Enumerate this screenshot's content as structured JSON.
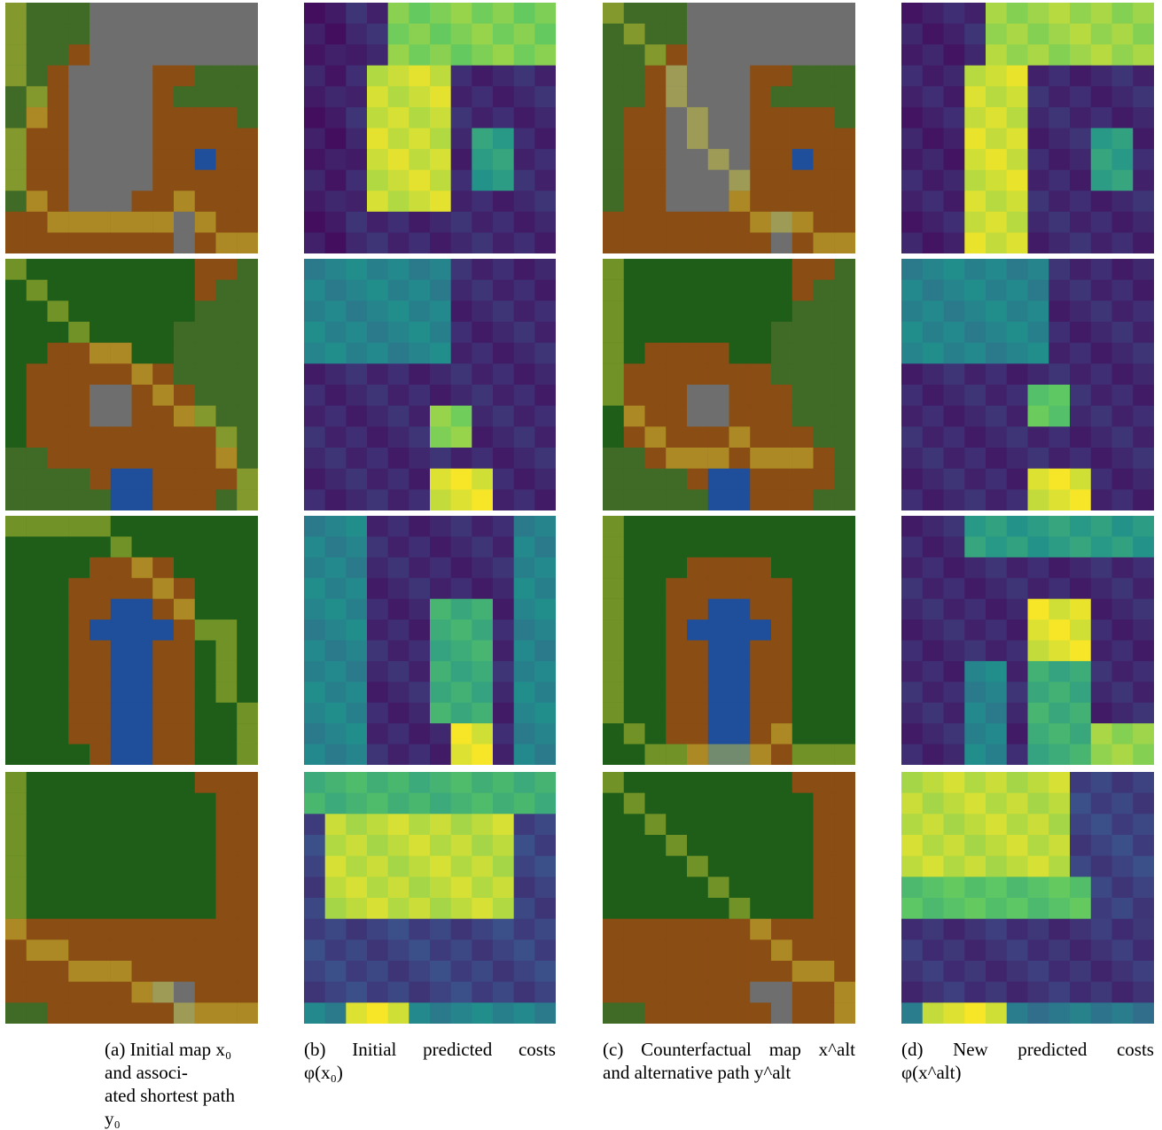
{
  "figure": {
    "rows": [
      "row-1",
      "row-2",
      "row-3",
      "row-4"
    ],
    "columns": [
      {
        "key": "a",
        "kind": "map",
        "caption": {
          "prefix": "(a)",
          "line1": "Initial map x₀ and associ-",
          "line2": "ated shortest path y₀"
        }
      },
      {
        "key": "b",
        "kind": "costs",
        "caption": {
          "prefix": "(b)",
          "words": [
            "Initial",
            "predicted",
            "costs"
          ],
          "line2": "φ(x₀)"
        }
      },
      {
        "key": "c",
        "kind": "map",
        "caption": {
          "prefix": "(c)",
          "words": [
            "Counterfactual",
            "map",
            "x^alt"
          ],
          "line2": "and alternative path y^alt"
        }
      },
      {
        "key": "d",
        "kind": "costs",
        "caption": {
          "prefix": "(d)",
          "words": [
            "New",
            "predicted",
            "costs"
          ],
          "line2": "φ(x^alt)"
        }
      }
    ],
    "colors": {
      "grass": "#3f6b26",
      "dirt": "#8a4d14",
      "rock": "#6e6e6e",
      "water": "#1f4f9a",
      "forest": "#1e5e18",
      "path_overlay": "#d8d23a",
      "viridis_low": "#440154",
      "viridis_mid": "#21918c",
      "viridis_high": "#fde725"
    },
    "icons": [
      "terrain-map-tile",
      "cost-heatmap-tile"
    ]
  }
}
